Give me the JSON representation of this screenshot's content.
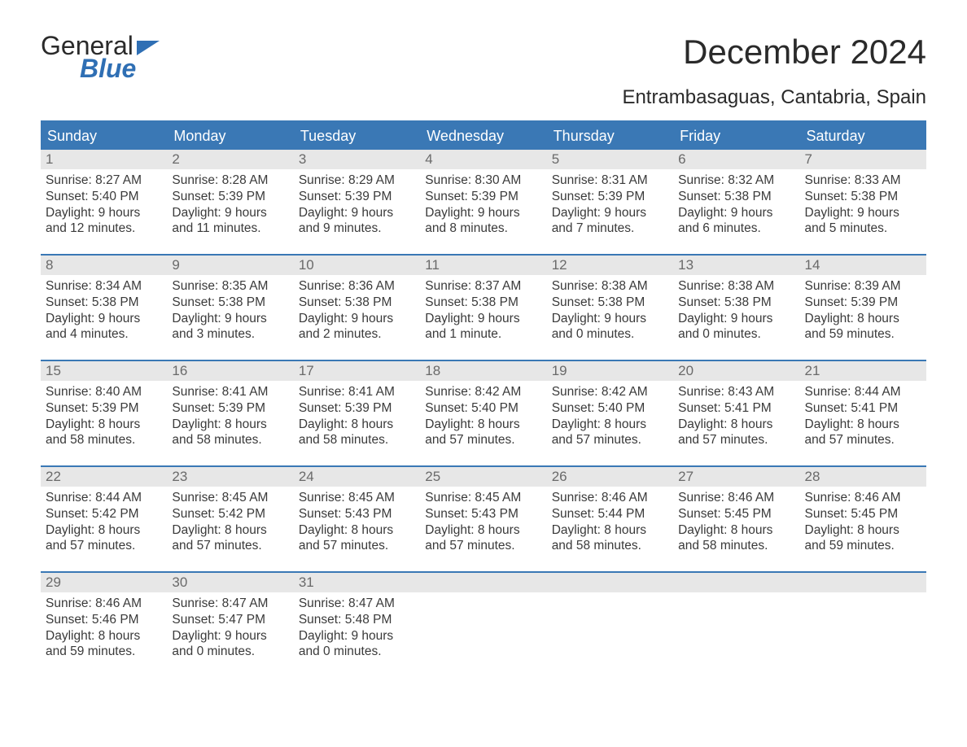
{
  "brand": {
    "word1": "General",
    "word2": "Blue"
  },
  "title": "December 2024",
  "location": "Entrambasaguas, Cantabria, Spain",
  "colors": {
    "accent": "#3a78b5",
    "header_bg": "#3a78b5",
    "header_text": "#ffffff",
    "daynum_bg": "#e7e7e7",
    "daynum_text": "#6a6a6a",
    "body_text": "#3a3a3a",
    "page_bg": "#ffffff"
  },
  "day_names": [
    "Sunday",
    "Monday",
    "Tuesday",
    "Wednesday",
    "Thursday",
    "Friday",
    "Saturday"
  ],
  "weeks": [
    [
      {
        "n": "1",
        "sr": "8:27 AM",
        "ss": "5:40 PM",
        "dl1": "Daylight: 9 hours",
        "dl2": "and 12 minutes."
      },
      {
        "n": "2",
        "sr": "8:28 AM",
        "ss": "5:39 PM",
        "dl1": "Daylight: 9 hours",
        "dl2": "and 11 minutes."
      },
      {
        "n": "3",
        "sr": "8:29 AM",
        "ss": "5:39 PM",
        "dl1": "Daylight: 9 hours",
        "dl2": "and 9 minutes."
      },
      {
        "n": "4",
        "sr": "8:30 AM",
        "ss": "5:39 PM",
        "dl1": "Daylight: 9 hours",
        "dl2": "and 8 minutes."
      },
      {
        "n": "5",
        "sr": "8:31 AM",
        "ss": "5:39 PM",
        "dl1": "Daylight: 9 hours",
        "dl2": "and 7 minutes."
      },
      {
        "n": "6",
        "sr": "8:32 AM",
        "ss": "5:38 PM",
        "dl1": "Daylight: 9 hours",
        "dl2": "and 6 minutes."
      },
      {
        "n": "7",
        "sr": "8:33 AM",
        "ss": "5:38 PM",
        "dl1": "Daylight: 9 hours",
        "dl2": "and 5 minutes."
      }
    ],
    [
      {
        "n": "8",
        "sr": "8:34 AM",
        "ss": "5:38 PM",
        "dl1": "Daylight: 9 hours",
        "dl2": "and 4 minutes."
      },
      {
        "n": "9",
        "sr": "8:35 AM",
        "ss": "5:38 PM",
        "dl1": "Daylight: 9 hours",
        "dl2": "and 3 minutes."
      },
      {
        "n": "10",
        "sr": "8:36 AM",
        "ss": "5:38 PM",
        "dl1": "Daylight: 9 hours",
        "dl2": "and 2 minutes."
      },
      {
        "n": "11",
        "sr": "8:37 AM",
        "ss": "5:38 PM",
        "dl1": "Daylight: 9 hours",
        "dl2": "and 1 minute."
      },
      {
        "n": "12",
        "sr": "8:38 AM",
        "ss": "5:38 PM",
        "dl1": "Daylight: 9 hours",
        "dl2": "and 0 minutes."
      },
      {
        "n": "13",
        "sr": "8:38 AM",
        "ss": "5:38 PM",
        "dl1": "Daylight: 9 hours",
        "dl2": "and 0 minutes."
      },
      {
        "n": "14",
        "sr": "8:39 AM",
        "ss": "5:39 PM",
        "dl1": "Daylight: 8 hours",
        "dl2": "and 59 minutes."
      }
    ],
    [
      {
        "n": "15",
        "sr": "8:40 AM",
        "ss": "5:39 PM",
        "dl1": "Daylight: 8 hours",
        "dl2": "and 58 minutes."
      },
      {
        "n": "16",
        "sr": "8:41 AM",
        "ss": "5:39 PM",
        "dl1": "Daylight: 8 hours",
        "dl2": "and 58 minutes."
      },
      {
        "n": "17",
        "sr": "8:41 AM",
        "ss": "5:39 PM",
        "dl1": "Daylight: 8 hours",
        "dl2": "and 58 minutes."
      },
      {
        "n": "18",
        "sr": "8:42 AM",
        "ss": "5:40 PM",
        "dl1": "Daylight: 8 hours",
        "dl2": "and 57 minutes."
      },
      {
        "n": "19",
        "sr": "8:42 AM",
        "ss": "5:40 PM",
        "dl1": "Daylight: 8 hours",
        "dl2": "and 57 minutes."
      },
      {
        "n": "20",
        "sr": "8:43 AM",
        "ss": "5:41 PM",
        "dl1": "Daylight: 8 hours",
        "dl2": "and 57 minutes."
      },
      {
        "n": "21",
        "sr": "8:44 AM",
        "ss": "5:41 PM",
        "dl1": "Daylight: 8 hours",
        "dl2": "and 57 minutes."
      }
    ],
    [
      {
        "n": "22",
        "sr": "8:44 AM",
        "ss": "5:42 PM",
        "dl1": "Daylight: 8 hours",
        "dl2": "and 57 minutes."
      },
      {
        "n": "23",
        "sr": "8:45 AM",
        "ss": "5:42 PM",
        "dl1": "Daylight: 8 hours",
        "dl2": "and 57 minutes."
      },
      {
        "n": "24",
        "sr": "8:45 AM",
        "ss": "5:43 PM",
        "dl1": "Daylight: 8 hours",
        "dl2": "and 57 minutes."
      },
      {
        "n": "25",
        "sr": "8:45 AM",
        "ss": "5:43 PM",
        "dl1": "Daylight: 8 hours",
        "dl2": "and 57 minutes."
      },
      {
        "n": "26",
        "sr": "8:46 AM",
        "ss": "5:44 PM",
        "dl1": "Daylight: 8 hours",
        "dl2": "and 58 minutes."
      },
      {
        "n": "27",
        "sr": "8:46 AM",
        "ss": "5:45 PM",
        "dl1": "Daylight: 8 hours",
        "dl2": "and 58 minutes."
      },
      {
        "n": "28",
        "sr": "8:46 AM",
        "ss": "5:45 PM",
        "dl1": "Daylight: 8 hours",
        "dl2": "and 59 minutes."
      }
    ],
    [
      {
        "n": "29",
        "sr": "8:46 AM",
        "ss": "5:46 PM",
        "dl1": "Daylight: 8 hours",
        "dl2": "and 59 minutes."
      },
      {
        "n": "30",
        "sr": "8:47 AM",
        "ss": "5:47 PM",
        "dl1": "Daylight: 9 hours",
        "dl2": "and 0 minutes."
      },
      {
        "n": "31",
        "sr": "8:47 AM",
        "ss": "5:48 PM",
        "dl1": "Daylight: 9 hours",
        "dl2": "and 0 minutes."
      },
      null,
      null,
      null,
      null
    ]
  ],
  "labels": {
    "sunrise_prefix": "Sunrise: ",
    "sunset_prefix": "Sunset: "
  }
}
